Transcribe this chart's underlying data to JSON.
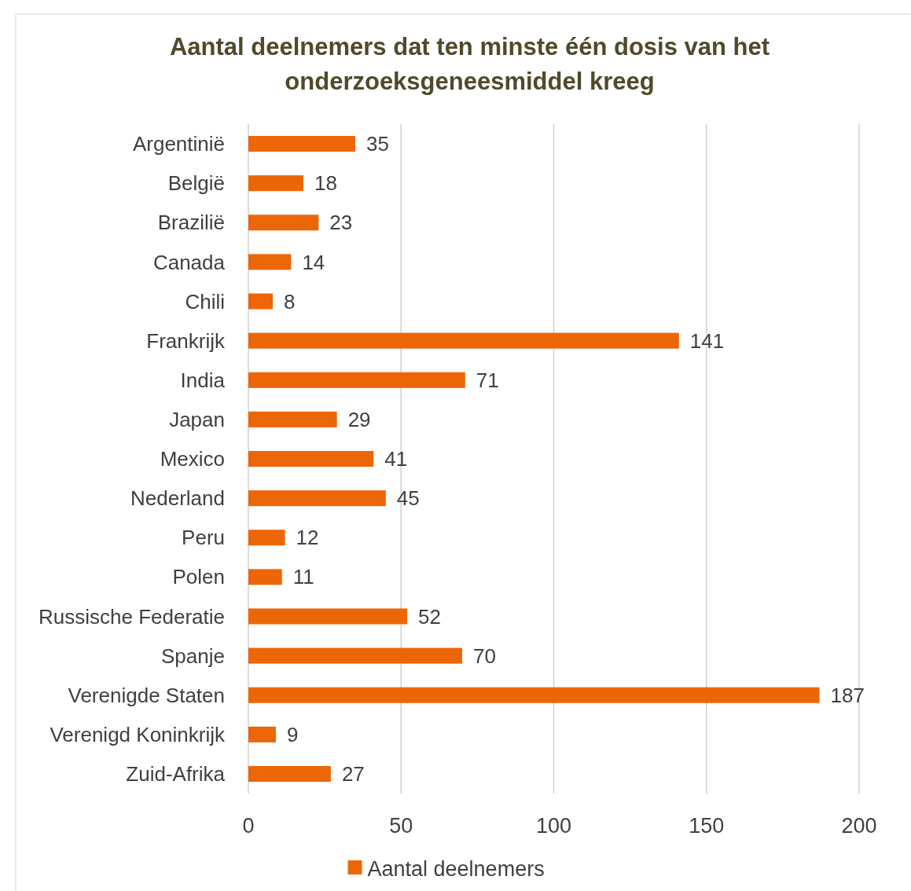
{
  "chart_data": {
    "type": "bar",
    "orientation": "horizontal",
    "title": "Aantal deelnemers dat ten minste één dosis van het onderzoeksgeneesmiddel kreeg",
    "categories": [
      "Argentinië",
      "België",
      "Brazilië",
      "Canada",
      "Chili",
      "Frankrijk",
      "India",
      "Japan",
      "Mexico",
      "Nederland",
      "Peru",
      "Polen",
      "Russische Federatie",
      "Spanje",
      "Verenigde Staten",
      "Verenigd Koninkrijk",
      "Zuid-Afrika"
    ],
    "series": [
      {
        "name": "Aantal deelnemers",
        "color": "#ec6608",
        "values": [
          35,
          18,
          23,
          14,
          8,
          141,
          71,
          29,
          41,
          45,
          12,
          11,
          52,
          70,
          187,
          9,
          27
        ]
      }
    ],
    "xlim": [
      0,
      200
    ],
    "xticks": [
      0,
      50,
      100,
      150,
      200
    ],
    "grid": "x",
    "legend": "bottom",
    "data_labels": true
  }
}
